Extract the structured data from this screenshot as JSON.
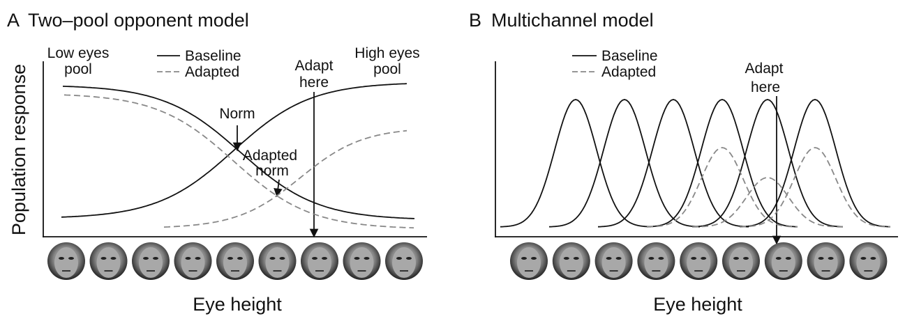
{
  "panels": [
    {
      "letter": "A",
      "title": "Two–pool opponent model",
      "y_label": "Population response",
      "x_label": "Eye height",
      "legend": [
        "Baseline",
        "Adapted"
      ],
      "labels": {
        "low_pool": [
          "Low eyes",
          "pool"
        ],
        "high_pool": [
          "High eyes",
          "pool"
        ],
        "norm": "Norm",
        "adapted_norm": [
          "Adapted",
          "norm"
        ],
        "adapt_here": [
          "Adapt",
          "here"
        ]
      }
    },
    {
      "letter": "B",
      "title": "Multichannel model",
      "x_label": "Eye height",
      "legend": [
        "Baseline",
        "Adapted"
      ],
      "labels": {
        "adapt_here": [
          "Adapt",
          "here"
        ]
      }
    }
  ]
}
